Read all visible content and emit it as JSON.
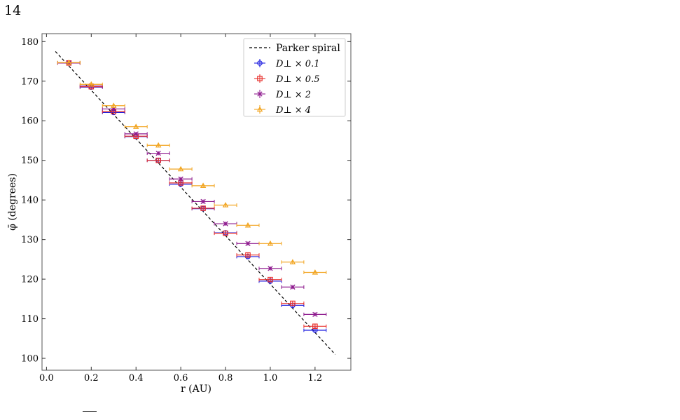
{
  "page": {
    "number": "14"
  },
  "chart_data": {
    "type": "scatter",
    "title": "",
    "xlabel": "r (AU)",
    "ylabel": "φ̄ (degrees)",
    "xlim": [
      -0.02,
      1.36
    ],
    "ylim": [
      97,
      182
    ],
    "x_ticks": [
      0.0,
      0.2,
      0.4,
      0.6,
      0.8,
      1.0,
      1.2
    ],
    "y_ticks": [
      100,
      110,
      120,
      130,
      140,
      150,
      160,
      170,
      180
    ],
    "grid": false,
    "legend_position": "top-right",
    "reference_line": {
      "name": "Parker spiral",
      "color": "#000000",
      "style": "dashed",
      "x": [
        0.04,
        1.29
      ],
      "y": [
        177.5,
        101.0
      ]
    },
    "series": [
      {
        "name": "D⊥ × 0.1",
        "color": "#1f1fe0",
        "marker": "circle",
        "x": [
          0.1,
          0.2,
          0.3,
          0.4,
          0.5,
          0.6,
          0.7,
          0.8,
          0.9,
          1.0,
          1.1,
          1.2
        ],
        "y": [
          174.6,
          168.5,
          162.1,
          156.0,
          150.0,
          144.0,
          137.8,
          131.7,
          125.7,
          119.5,
          113.4,
          107.1
        ],
        "xerr": 0.05,
        "yerr": 0.5
      },
      {
        "name": "D⊥ × 0.5",
        "color": "#e8302c",
        "marker": "square",
        "x": [
          0.1,
          0.2,
          0.3,
          0.4,
          0.5,
          0.6,
          0.7,
          0.8,
          0.9,
          1.0,
          1.1,
          1.2
        ],
        "y": [
          174.6,
          168.6,
          162.3,
          156.1,
          150.0,
          144.3,
          137.9,
          131.6,
          126.1,
          119.9,
          113.9,
          108.1
        ],
        "xerr": 0.05,
        "yerr": 0.5
      },
      {
        "name": "D⊥ × 2",
        "color": "#8e1a8e",
        "marker": "x",
        "x": [
          0.1,
          0.2,
          0.3,
          0.4,
          0.5,
          0.6,
          0.7,
          0.8,
          0.9,
          1.0,
          1.1,
          1.2
        ],
        "y": [
          174.6,
          168.8,
          163.0,
          156.7,
          151.8,
          145.3,
          139.6,
          134.0,
          129.0,
          122.7,
          118.0,
          111.1
        ],
        "xerr": 0.05,
        "yerr": 0.5
      },
      {
        "name": "D⊥ × 4",
        "color": "#f2a521",
        "marker": "triangle",
        "x": [
          0.1,
          0.2,
          0.3,
          0.4,
          0.5,
          0.6,
          0.7,
          0.8,
          0.9,
          1.0,
          1.1,
          1.2
        ],
        "y": [
          174.7,
          169.2,
          163.8,
          158.5,
          153.8,
          147.8,
          143.6,
          138.7,
          133.6,
          129.0,
          124.3,
          121.7
        ],
        "xerr": 0.05,
        "yerr": 0.5
      }
    ]
  }
}
